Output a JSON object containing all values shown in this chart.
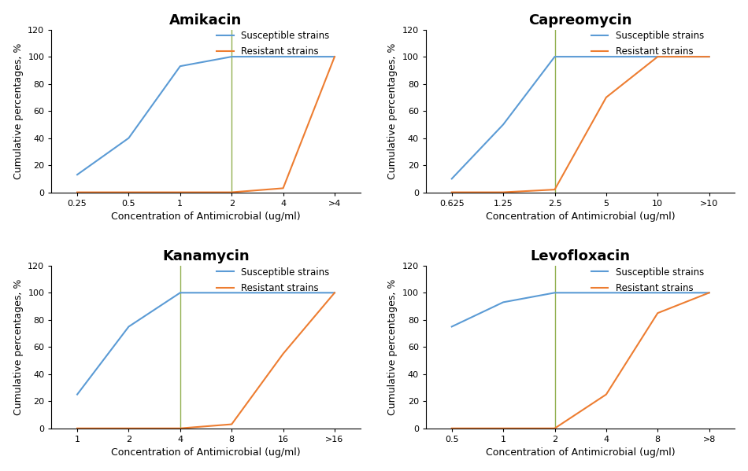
{
  "charts": [
    {
      "title": "Amikacin",
      "xtick_labels": [
        "0.25",
        "0.5",
        "1",
        "2",
        "4",
        ">4"
      ],
      "xtick_pos": [
        0,
        1,
        2,
        3,
        4,
        5
      ],
      "susceptible_x": [
        0,
        1,
        2,
        3,
        4,
        5
      ],
      "susceptible_y": [
        13,
        40,
        93,
        100,
        100,
        100
      ],
      "resistant_x": [
        0,
        1,
        2,
        3,
        4,
        5
      ],
      "resistant_y": [
        0,
        0,
        0,
        0,
        3,
        100
      ],
      "vline_x": 3,
      "ylim": [
        0,
        120
      ],
      "yticks": [
        0,
        20,
        40,
        60,
        80,
        100,
        120
      ]
    },
    {
      "title": "Capreomycin",
      "xtick_labels": [
        "0.625",
        "1.25",
        "2.5",
        "5",
        "10",
        ">10"
      ],
      "xtick_pos": [
        0,
        1,
        2,
        3,
        4,
        5
      ],
      "susceptible_x": [
        0,
        1,
        2,
        3,
        4,
        5
      ],
      "susceptible_y": [
        10,
        50,
        100,
        100,
        100,
        100
      ],
      "resistant_x": [
        0,
        1,
        2,
        3,
        4,
        5
      ],
      "resistant_y": [
        0,
        0,
        2,
        70,
        100,
        100
      ],
      "vline_x": 2,
      "ylim": [
        0,
        120
      ],
      "yticks": [
        0,
        20,
        40,
        60,
        80,
        100,
        120
      ]
    },
    {
      "title": "Kanamycin",
      "xtick_labels": [
        "1",
        "2",
        "4",
        "8",
        "16",
        ">16"
      ],
      "xtick_pos": [
        0,
        1,
        2,
        3,
        4,
        5
      ],
      "susceptible_x": [
        0,
        1,
        2,
        3,
        4,
        5
      ],
      "susceptible_y": [
        25,
        75,
        100,
        100,
        100,
        100
      ],
      "resistant_x": [
        0,
        1,
        2,
        3,
        4,
        5
      ],
      "resistant_y": [
        0,
        0,
        0,
        3,
        55,
        100
      ],
      "vline_x": 2,
      "ylim": [
        0,
        120
      ],
      "yticks": [
        0,
        20,
        40,
        60,
        80,
        100,
        120
      ]
    },
    {
      "title": "Levofloxacin",
      "xtick_labels": [
        "0.5",
        "1",
        "2",
        "4",
        "8",
        ">8"
      ],
      "xtick_pos": [
        0,
        1,
        2,
        3,
        4,
        5
      ],
      "susceptible_x": [
        0,
        1,
        2,
        3,
        4,
        5
      ],
      "susceptible_y": [
        75,
        93,
        100,
        100,
        100,
        100
      ],
      "resistant_x": [
        0,
        1,
        2,
        3,
        4,
        5
      ],
      "resistant_y": [
        0,
        0,
        0,
        25,
        85,
        100
      ],
      "vline_x": 2,
      "ylim": [
        0,
        120
      ],
      "yticks": [
        0,
        20,
        40,
        60,
        80,
        100,
        120
      ]
    }
  ],
  "susceptible_color": "#5B9BD5",
  "resistant_color": "#ED7D31",
  "vline_color": "#92B050",
  "xlabel": "Concentration of Antimicrobial (ug/ml)",
  "ylabel": "Cumulative percentages, %",
  "legend_susceptible": "Susceptible strains",
  "legend_resistant": "Resistant strains",
  "title_fontsize": 13,
  "axis_label_fontsize": 9,
  "tick_fontsize": 8,
  "legend_fontsize": 8.5,
  "fig_width": 9.5,
  "fig_height": 5.99
}
